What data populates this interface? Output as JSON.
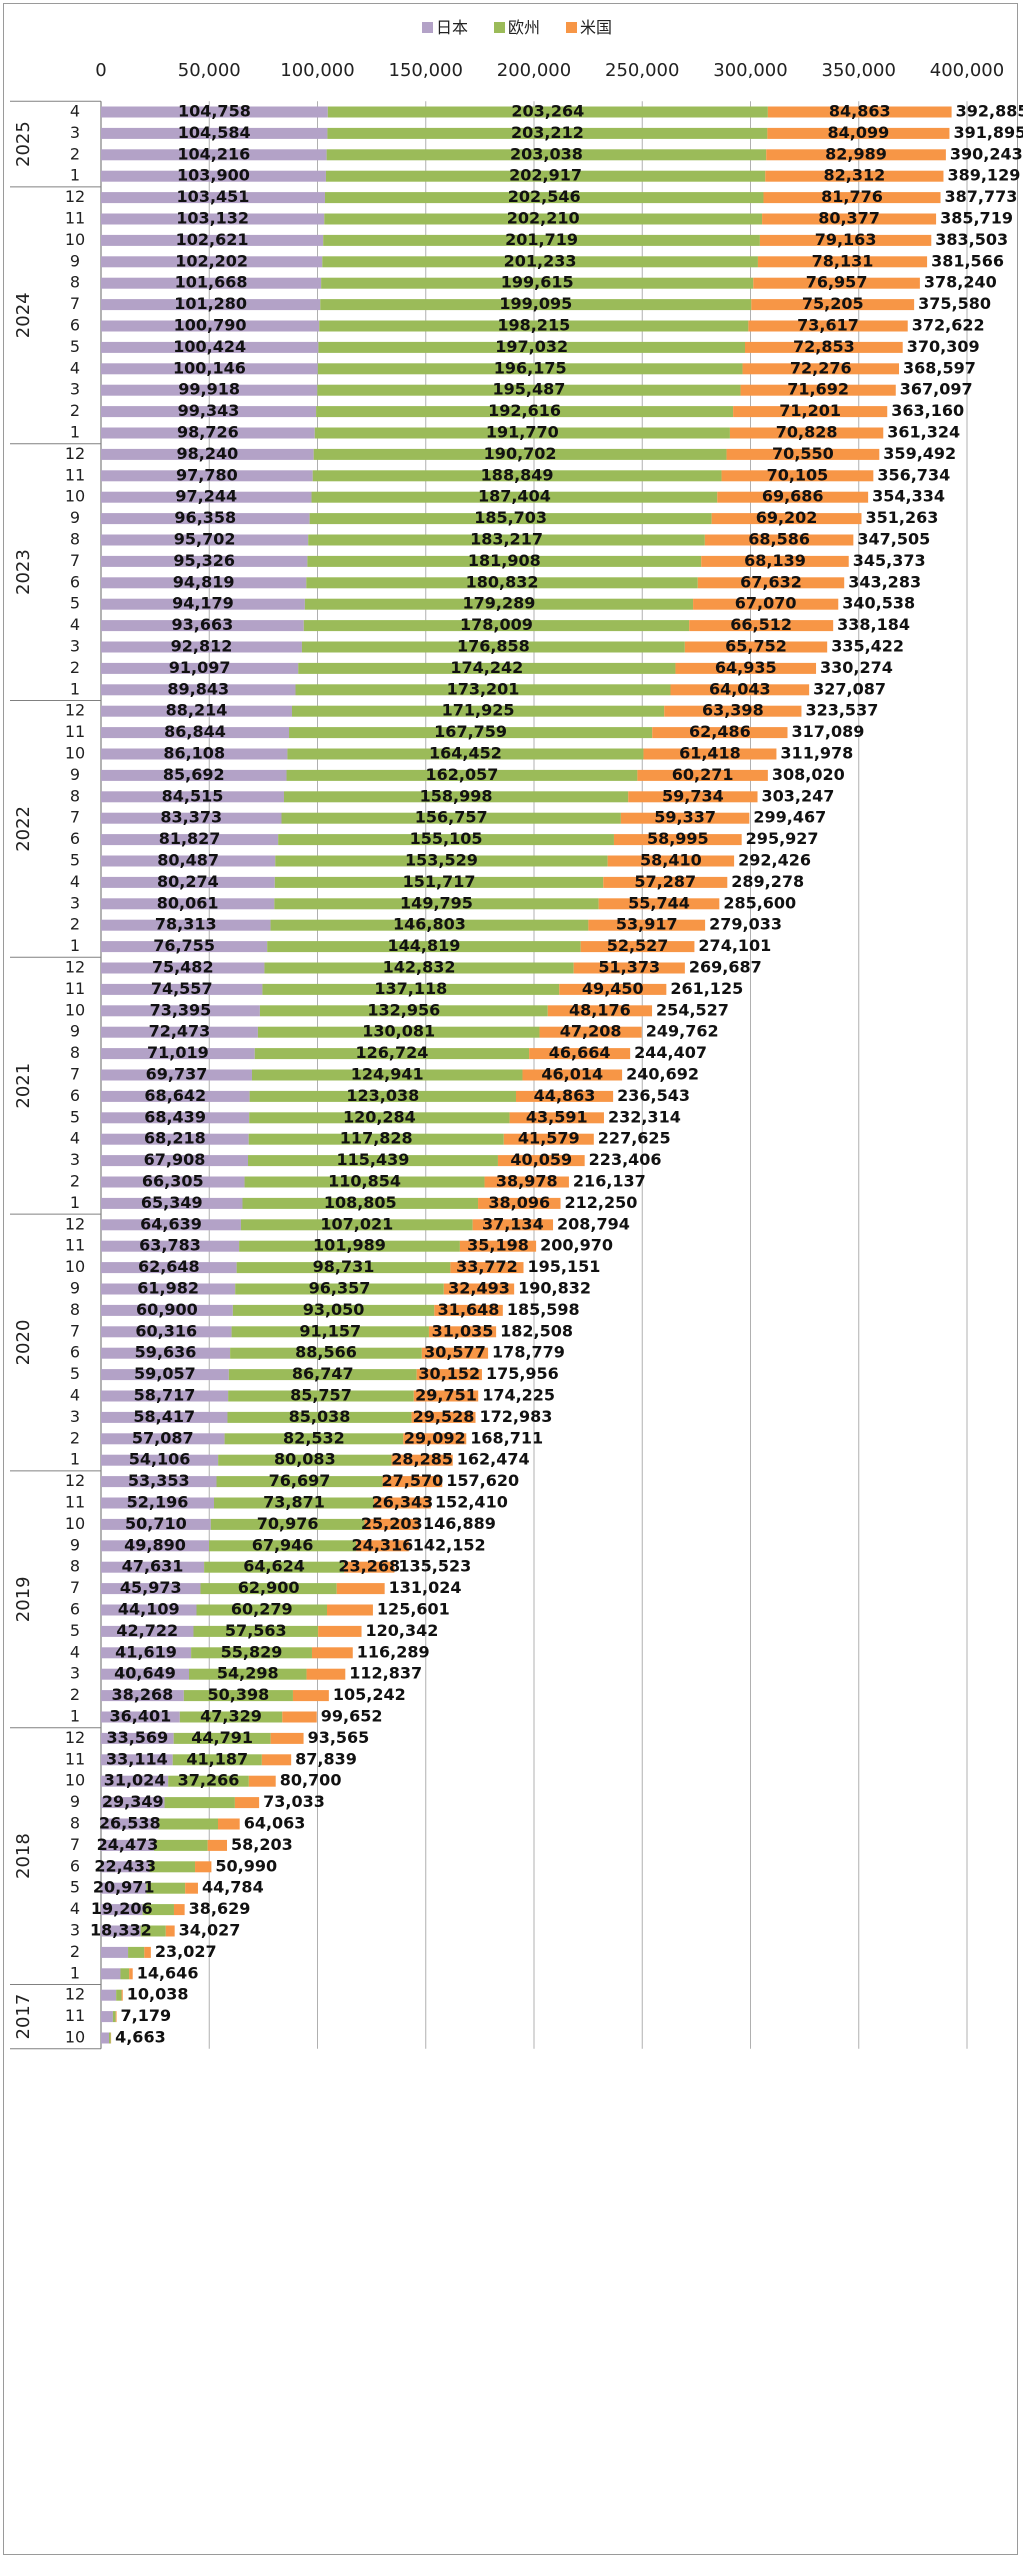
{
  "chart_data": {
    "type": "bar",
    "orientation": "horizontal",
    "stacked": true,
    "title": "",
    "xlabel": "",
    "ylabel": "",
    "xlim": [
      0,
      400000
    ],
    "x_ticks": [
      "0",
      "50,000",
      "100,000",
      "150,000",
      "200,000",
      "250,000",
      "300,000",
      "350,000",
      "400,000"
    ],
    "grid": "vertical",
    "legend_position": "top",
    "colors": {
      "japan": "#b3a2c7",
      "europe": "#9bbb59",
      "us": "#f79646",
      "grid": "#b0b0b0",
      "axis": "#808080"
    },
    "series": [
      {
        "name": "日本",
        "key": "japan"
      },
      {
        "name": "欧州",
        "key": "europe"
      },
      {
        "name": "米国",
        "key": "us"
      }
    ],
    "groups": [
      {
        "year": "2025",
        "rows": [
          {
            "month": "4",
            "japan": 104758,
            "europe": 203264,
            "us": 84863,
            "total": 392885
          },
          {
            "month": "3",
            "japan": 104584,
            "europe": 203212,
            "us": 84099,
            "total": 391895
          },
          {
            "month": "2",
            "japan": 104216,
            "europe": 203038,
            "us": 82989,
            "total": 390243
          },
          {
            "month": "1",
            "japan": 103900,
            "europe": 202917,
            "us": 82312,
            "total": 389129
          }
        ]
      },
      {
        "year": "2024",
        "rows": [
          {
            "month": "12",
            "japan": 103451,
            "europe": 202546,
            "us": 81776,
            "total": 387773
          },
          {
            "month": "11",
            "japan": 103132,
            "europe": 202210,
            "us": 80377,
            "total": 385719
          },
          {
            "month": "10",
            "japan": 102621,
            "europe": 201719,
            "us": 79163,
            "total": 383503
          },
          {
            "month": "9",
            "japan": 102202,
            "europe": 201233,
            "us": 78131,
            "total": 381566
          },
          {
            "month": "8",
            "japan": 101668,
            "europe": 199615,
            "us": 76957,
            "total": 378240
          },
          {
            "month": "7",
            "japan": 101280,
            "europe": 199095,
            "us": 75205,
            "total": 375580
          },
          {
            "month": "6",
            "japan": 100790,
            "europe": 198215,
            "us": 73617,
            "total": 372622
          },
          {
            "month": "5",
            "japan": 100424,
            "europe": 197032,
            "us": 72853,
            "total": 370309
          },
          {
            "month": "4",
            "japan": 100146,
            "europe": 196175,
            "us": 72276,
            "total": 368597
          },
          {
            "month": "3",
            "japan": 99918,
            "europe": 195487,
            "us": 71692,
            "total": 367097
          },
          {
            "month": "2",
            "japan": 99343,
            "europe": 192616,
            "us": 71201,
            "total": 363160
          },
          {
            "month": "1",
            "japan": 98726,
            "europe": 191770,
            "us": 70828,
            "total": 361324
          }
        ]
      },
      {
        "year": "2023",
        "rows": [
          {
            "month": "12",
            "japan": 98240,
            "europe": 190702,
            "us": 70550,
            "total": 359492
          },
          {
            "month": "11",
            "japan": 97780,
            "europe": 188849,
            "us": 70105,
            "total": 356734
          },
          {
            "month": "10",
            "japan": 97244,
            "europe": 187404,
            "us": 69686,
            "total": 354334
          },
          {
            "month": "9",
            "japan": 96358,
            "europe": 185703,
            "us": 69202,
            "total": 351263
          },
          {
            "month": "8",
            "japan": 95702,
            "europe": 183217,
            "us": 68586,
            "total": 347505
          },
          {
            "month": "7",
            "japan": 95326,
            "europe": 181908,
            "us": 68139,
            "total": 345373
          },
          {
            "month": "6",
            "japan": 94819,
            "europe": 180832,
            "us": 67632,
            "total": 343283
          },
          {
            "month": "5",
            "japan": 94179,
            "europe": 179289,
            "us": 67070,
            "total": 340538
          },
          {
            "month": "4",
            "japan": 93663,
            "europe": 178009,
            "us": 66512,
            "total": 338184
          },
          {
            "month": "3",
            "japan": 92812,
            "europe": 176858,
            "us": 65752,
            "total": 335422
          },
          {
            "month": "2",
            "japan": 91097,
            "europe": 174242,
            "us": 64935,
            "total": 330274
          },
          {
            "month": "1",
            "japan": 89843,
            "europe": 173201,
            "us": 64043,
            "total": 327087
          }
        ]
      },
      {
        "year": "2022",
        "rows": [
          {
            "month": "12",
            "japan": 88214,
            "europe": 171925,
            "us": 63398,
            "total": 323537
          },
          {
            "month": "11",
            "japan": 86844,
            "europe": 167759,
            "us": 62486,
            "total": 317089
          },
          {
            "month": "10",
            "japan": 86108,
            "europe": 164452,
            "us": 61418,
            "total": 311978
          },
          {
            "month": "9",
            "japan": 85692,
            "europe": 162057,
            "us": 60271,
            "total": 308020
          },
          {
            "month": "8",
            "japan": 84515,
            "europe": 158998,
            "us": 59734,
            "total": 303247
          },
          {
            "month": "7",
            "japan": 83373,
            "europe": 156757,
            "us": 59337,
            "total": 299467
          },
          {
            "month": "6",
            "japan": 81827,
            "europe": 155105,
            "us": 58995,
            "total": 295927
          },
          {
            "month": "5",
            "japan": 80487,
            "europe": 153529,
            "us": 58410,
            "total": 292426
          },
          {
            "month": "4",
            "japan": 80274,
            "europe": 151717,
            "us": 57287,
            "total": 289278
          },
          {
            "month": "3",
            "japan": 80061,
            "europe": 149795,
            "us": 55744,
            "total": 285600
          },
          {
            "month": "2",
            "japan": 78313,
            "europe": 146803,
            "us": 53917,
            "total": 279033
          },
          {
            "month": "1",
            "japan": 76755,
            "europe": 144819,
            "us": 52527,
            "total": 274101
          }
        ]
      },
      {
        "year": "2021",
        "rows": [
          {
            "month": "12",
            "japan": 75482,
            "europe": 142832,
            "us": 51373,
            "total": 269687
          },
          {
            "month": "11",
            "japan": 74557,
            "europe": 137118,
            "us": 49450,
            "total": 261125
          },
          {
            "month": "10",
            "japan": 73395,
            "europe": 132956,
            "us": 48176,
            "total": 254527
          },
          {
            "month": "9",
            "japan": 72473,
            "europe": 130081,
            "us": 47208,
            "total": 249762
          },
          {
            "month": "8",
            "japan": 71019,
            "europe": 126724,
            "us": 46664,
            "total": 244407
          },
          {
            "month": "7",
            "japan": 69737,
            "europe": 124941,
            "us": 46014,
            "total": 240692
          },
          {
            "month": "6",
            "japan": 68642,
            "europe": 123038,
            "us": 44863,
            "total": 236543
          },
          {
            "month": "5",
            "japan": 68439,
            "europe": 120284,
            "us": 43591,
            "total": 232314
          },
          {
            "month": "4",
            "japan": 68218,
            "europe": 117828,
            "us": 41579,
            "total": 227625
          },
          {
            "month": "3",
            "japan": 67908,
            "europe": 115439,
            "us": 40059,
            "total": 223406
          },
          {
            "month": "2",
            "japan": 66305,
            "europe": 110854,
            "us": 38978,
            "total": 216137
          },
          {
            "month": "1",
            "japan": 65349,
            "europe": 108805,
            "us": 38096,
            "total": 212250
          }
        ]
      },
      {
        "year": "2020",
        "rows": [
          {
            "month": "12",
            "japan": 64639,
            "europe": 107021,
            "us": 37134,
            "total": 208794
          },
          {
            "month": "11",
            "japan": 63783,
            "europe": 101989,
            "us": 35198,
            "total": 200970
          },
          {
            "month": "10",
            "japan": 62648,
            "europe": 98731,
            "us": 33772,
            "total": 195151
          },
          {
            "month": "9",
            "japan": 61982,
            "europe": 96357,
            "us": 32493,
            "total": 190832
          },
          {
            "month": "8",
            "japan": 60900,
            "europe": 93050,
            "us": 31648,
            "total": 185598
          },
          {
            "month": "7",
            "japan": 60316,
            "europe": 91157,
            "us": 31035,
            "total": 182508
          },
          {
            "month": "6",
            "japan": 59636,
            "europe": 88566,
            "us": 30577,
            "total": 178779
          },
          {
            "month": "5",
            "japan": 59057,
            "europe": 86747,
            "us": 30152,
            "total": 175956
          },
          {
            "month": "4",
            "japan": 58717,
            "europe": 85757,
            "us": 29751,
            "total": 174225
          },
          {
            "month": "3",
            "japan": 58417,
            "europe": 85038,
            "us": 29528,
            "total": 172983
          },
          {
            "month": "2",
            "japan": 57087,
            "europe": 82532,
            "us": 29092,
            "total": 168711
          },
          {
            "month": "1",
            "japan": 54106,
            "europe": 80083,
            "us": 28285,
            "total": 162474
          }
        ]
      },
      {
        "year": "2019",
        "rows": [
          {
            "month": "12",
            "japan": 53353,
            "europe": 76697,
            "us": 27570,
            "total": 157620
          },
          {
            "month": "11",
            "japan": 52196,
            "europe": 73871,
            "us": 26343,
            "total": 152410
          },
          {
            "month": "10",
            "japan": 50710,
            "europe": 70976,
            "us": 25203,
            "total": 146889
          },
          {
            "month": "9",
            "japan": 49890,
            "europe": 67946,
            "us": 24316,
            "total": 142152
          },
          {
            "month": "8",
            "japan": 47631,
            "europe": 64624,
            "us": 23268,
            "total": 135523
          },
          {
            "month": "7",
            "japan": 45973,
            "europe": 62900,
            "us": 22151,
            "total": 131024,
            "hide": [
              "us"
            ]
          },
          {
            "month": "6",
            "japan": 44109,
            "europe": 60279,
            "us": 21213,
            "total": 125601,
            "hide": [
              "us"
            ]
          },
          {
            "month": "5",
            "japan": 42722,
            "europe": 57563,
            "us": 20057,
            "total": 120342,
            "hide": [
              "us"
            ]
          },
          {
            "month": "4",
            "japan": 41619,
            "europe": 55829,
            "us": 18841,
            "total": 116289,
            "hide": [
              "us"
            ]
          },
          {
            "month": "3",
            "japan": 40649,
            "europe": 54298,
            "us": 17890,
            "total": 112837,
            "hide": [
              "us"
            ]
          },
          {
            "month": "2",
            "japan": 38268,
            "europe": 50398,
            "us": 16576,
            "total": 105242,
            "hide": [
              "us"
            ]
          },
          {
            "month": "1",
            "japan": 36401,
            "europe": 47329,
            "us": 15922,
            "total": 99652,
            "hide": [
              "us"
            ]
          }
        ]
      },
      {
        "year": "2018",
        "rows": [
          {
            "month": "12",
            "japan": 33569,
            "europe": 44791,
            "us": 15205,
            "total": 93565,
            "hide": [
              "us"
            ]
          },
          {
            "month": "11",
            "japan": 33114,
            "europe": 41187,
            "us": 13538,
            "total": 87839,
            "hide": [
              "us"
            ]
          },
          {
            "month": "10",
            "japan": 31024,
            "europe": 37266,
            "us": 12410,
            "total": 80700,
            "hide": [
              "us"
            ]
          },
          {
            "month": "9",
            "japan": 29349,
            "europe": 32500,
            "us": 11184,
            "total": 73033,
            "hide": [
              "europe",
              "us"
            ]
          },
          {
            "month": "8",
            "japan": 26538,
            "europe": 27500,
            "us": 10025,
            "total": 64063,
            "hide": [
              "europe",
              "us"
            ]
          },
          {
            "month": "7",
            "japan": 24473,
            "europe": 24800,
            "us": 8930,
            "total": 58203,
            "hide": [
              "europe",
              "us"
            ]
          },
          {
            "month": "6",
            "japan": 22433,
            "europe": 21000,
            "us": 7557,
            "total": 50990,
            "hide": [
              "europe",
              "us"
            ]
          },
          {
            "month": "5",
            "japan": 20971,
            "europe": 17900,
            "us": 5913,
            "total": 44784,
            "hide": [
              "europe",
              "us"
            ]
          },
          {
            "month": "4",
            "japan": 19206,
            "europe": 14500,
            "us": 4923,
            "total": 38629,
            "hide": [
              "europe",
              "us"
            ]
          },
          {
            "month": "3",
            "japan": 18332,
            "europe": 11600,
            "us": 4095,
            "total": 34027,
            "hide": [
              "europe",
              "us"
            ]
          },
          {
            "month": "2",
            "japan": 12500,
            "europe": 7500,
            "us": 3027,
            "total": 23027,
            "hide": [
              "japan",
              "europe",
              "us"
            ]
          },
          {
            "month": "1",
            "japan": 9000,
            "europe": 4000,
            "us": 1646,
            "total": 14646,
            "hide": [
              "japan",
              "europe",
              "us"
            ]
          }
        ]
      },
      {
        "year": "2017",
        "rows": [
          {
            "month": "12",
            "japan": 7000,
            "europe": 2500,
            "us": 538,
            "total": 10038,
            "hide": [
              "japan",
              "europe",
              "us"
            ]
          },
          {
            "month": "11",
            "japan": 5500,
            "europe": 1300,
            "us": 379,
            "total": 7179,
            "hide": [
              "japan",
              "europe",
              "us"
            ]
          },
          {
            "month": "10",
            "japan": 3700,
            "europe": 800,
            "us": 163,
            "total": 4663,
            "hide": [
              "japan",
              "europe",
              "us"
            ]
          }
        ]
      }
    ]
  }
}
